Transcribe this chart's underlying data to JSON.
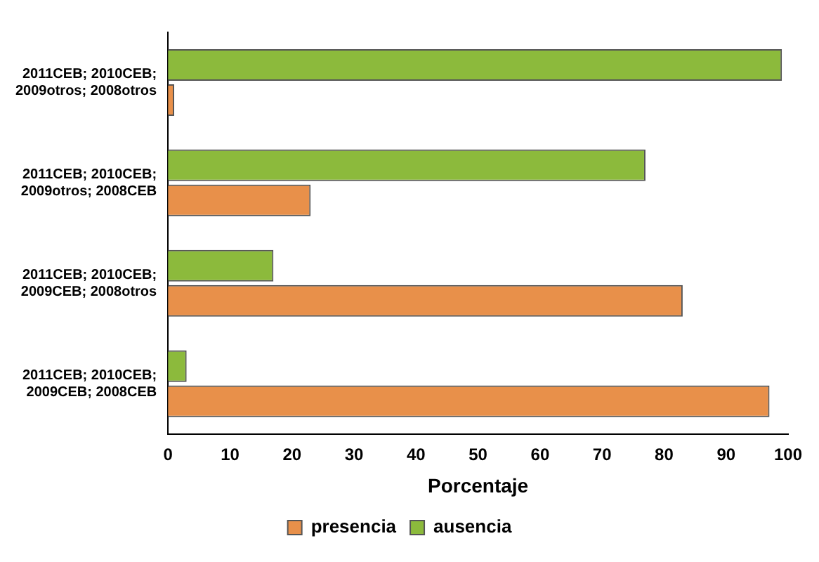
{
  "chart_data": {
    "type": "bar",
    "orientation": "horizontal",
    "xlabel": "Porcentaje",
    "categories": [
      "2011CEB; 2010CEB; 2009otros; 2008otros",
      "2011CEB; 2010CEB; 2009otros; 2008CEB",
      "2011CEB; 2010CEB; 2009CEB; 2008otros",
      "2011CEB; 2010CEB; 2009CEB; 2008CEB"
    ],
    "series": [
      {
        "name": "presencia",
        "color": "#e8904a",
        "values": [
          1,
          23,
          83,
          97
        ]
      },
      {
        "name": "ausencia",
        "color": "#8cba3c",
        "values": [
          99,
          77,
          17,
          3
        ]
      }
    ],
    "xlim": [
      0,
      100
    ],
    "xticks": [
      0,
      10,
      20,
      30,
      40,
      50,
      60,
      70,
      80,
      90,
      100
    ],
    "grid": false,
    "legend": "bottom"
  }
}
